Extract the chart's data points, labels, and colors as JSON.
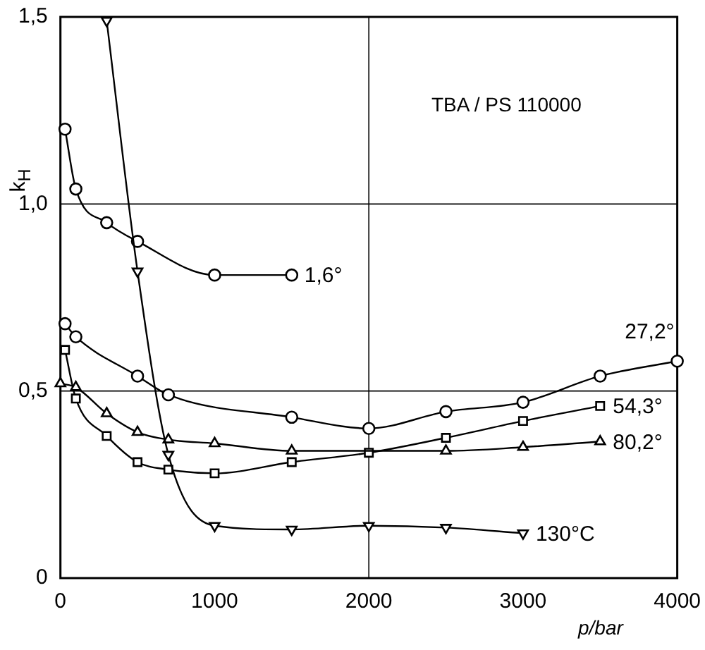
{
  "chart_data": {
    "type": "line",
    "xlabel": "p/bar",
    "ylabel": "k$_{H}$",
    "annotations": [
      "TBA / PS 110000"
    ],
    "xlim": [
      0,
      4000
    ],
    "xticks": [
      0,
      1000,
      2000,
      3000,
      4000
    ],
    "ylim": [
      0,
      1.5
    ],
    "yticks": [
      0,
      {
        "value": 0.5,
        "label": "0,5"
      },
      {
        "value": 1,
        "label": "1,0"
      },
      {
        "value": 1.5,
        "label": "1,5"
      }
    ],
    "grid": false,
    "legend": false,
    "ref_lines": [
      {
        "axis": "x",
        "value": 2000,
        "color": "#000000"
      },
      {
        "axis": "y",
        "value": 0.5,
        "color": "#000000"
      },
      {
        "axis": "y",
        "value": 1,
        "color": "#000000"
      }
    ],
    "series": [
      {
        "name": "1,6°",
        "color": "#000000",
        "marker": "circle",
        "x": [
          30,
          100,
          300,
          500,
          1000,
          1500
        ],
        "values": [
          1.2,
          1.04,
          0.95,
          0.9,
          0.81,
          0.81
        ]
      },
      {
        "name": "27,2°",
        "color": "#000000",
        "marker": "circle",
        "x": [
          30,
          100,
          500,
          700,
          1500,
          2000,
          2500,
          3000,
          3500,
          4000
        ],
        "values": [
          0.68,
          0.645,
          0.54,
          0.49,
          0.43,
          0.4,
          0.445,
          0.47,
          0.54,
          0.58
        ]
      },
      {
        "name": "54,3°",
        "color": "#000000",
        "marker": "square",
        "x": [
          30,
          100,
          300,
          500,
          700,
          1000,
          1500,
          2000,
          2500,
          3000,
          3500
        ],
        "values": [
          0.61,
          0.48,
          0.38,
          0.31,
          0.29,
          0.28,
          0.31,
          0.335,
          0.375,
          0.42,
          0.46
        ]
      },
      {
        "name": "80,2°",
        "color": "#000000",
        "marker": "triangle",
        "x": [
          0,
          100,
          300,
          500,
          700,
          1000,
          1500,
          2500,
          3000,
          3500
        ],
        "values": [
          0.52,
          0.51,
          0.44,
          0.39,
          0.37,
          0.36,
          0.34,
          0.34,
          0.35,
          0.365
        ]
      },
      {
        "name": "130°C",
        "color": "#000000",
        "marker": "triangle-down",
        "x": [
          300,
          500,
          700,
          1000,
          1500,
          2000,
          2500,
          3000
        ],
        "values": [
          1.49,
          0.82,
          0.33,
          0.14,
          0.13,
          0.14,
          0.135,
          0.12
        ]
      }
    ]
  }
}
